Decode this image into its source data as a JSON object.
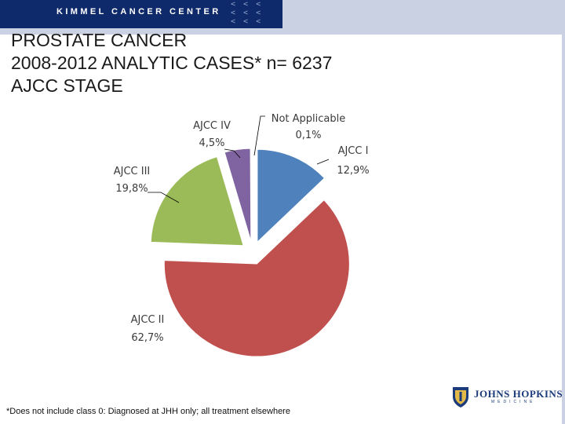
{
  "header": {
    "brand": "KIMMEL CANCER CENTER",
    "chevron_rows": [
      "< < <",
      "< < <",
      "< < <"
    ],
    "colors": {
      "band": "#c9d1e3",
      "dark": "#0f2a6b"
    }
  },
  "title": {
    "line1": "PROSTATE CANCER",
    "line2": "2008-2012 ANALYTIC CASES* n= 6237",
    "line3": "AJCC STAGE"
  },
  "chart_data": {
    "type": "pie",
    "exploded": true,
    "slices": [
      {
        "category": "AJCC I",
        "value": 12.9,
        "label": "12,9%",
        "color": "#4f81bd"
      },
      {
        "category": "AJCC II",
        "value": 62.7,
        "label": "62,7%",
        "color": "#c0504d"
      },
      {
        "category": "AJCC III",
        "value": 19.8,
        "label": "19,8%",
        "color": "#9bbb59"
      },
      {
        "category": "AJCC IV",
        "value": 4.5,
        "label": "4,5%",
        "color": "#8064a2"
      },
      {
        "category": "Not Applicable",
        "value": 0.1,
        "label": "0,1%",
        "color": "#4bacc6"
      }
    ]
  },
  "footnote": "*Does not include class 0: Diagnosed at JHH only; all treatment elsewhere",
  "logo": {
    "name": "JOHNS HOPKINS",
    "sub": "MEDICINE"
  }
}
